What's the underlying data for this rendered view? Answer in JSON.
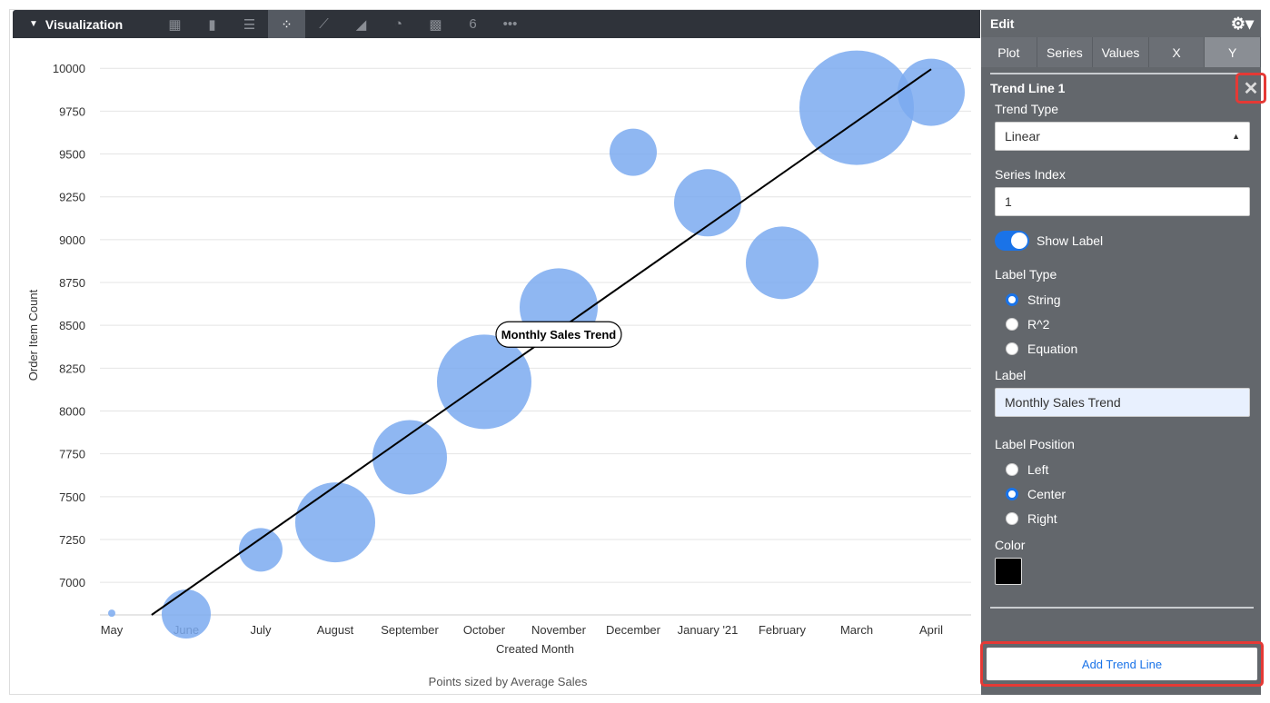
{
  "toolbar": {
    "title": "Visualization",
    "icons": [
      "table-icon",
      "column-chart-icon",
      "bar-chart-icon",
      "scatter-chart-icon",
      "line-chart-icon",
      "area-chart-icon",
      "pie-chart-icon",
      "map-icon",
      "single-value-icon",
      "more-icon"
    ],
    "single_value_glyph": "6",
    "more_glyph": "•••"
  },
  "panel": {
    "title": "Edit",
    "tabs": [
      "Plot",
      "Series",
      "Values",
      "X",
      "Y"
    ],
    "active_tab": "Y",
    "trend_title": "Trend Line 1",
    "trend_type_label": "Trend Type",
    "trend_type": "Linear",
    "series_index_label": "Series Index",
    "series_index": "1",
    "show_label": "Show Label",
    "show_label_on": true,
    "label_type_label": "Label Type",
    "label_types": [
      "String",
      "R^2",
      "Equation"
    ],
    "label_type_selected": "String",
    "label_label": "Label",
    "label_value": "Monthly Sales Trend",
    "label_position_label": "Label Position",
    "positions": [
      "Left",
      "Center",
      "Right"
    ],
    "position_selected": "Center",
    "color_label": "Color",
    "color": "#000000",
    "add_button": "Add Trend Line",
    "highlight_color": "#e53935"
  },
  "chart_data": {
    "type": "scatter",
    "xlabel": "Created Month",
    "ylabel": "Order Item Count",
    "footnote": "Points sized by Average Sales",
    "categories": [
      "May",
      "June",
      "July",
      "August",
      "September",
      "October",
      "November",
      "December",
      "January '21",
      "February",
      "March",
      "April"
    ],
    "values": [
      6820,
      6815,
      7190,
      7350,
      7730,
      8170,
      8605,
      9510,
      9215,
      8865,
      9770,
      9860
    ],
    "sizes": [
      4,
      27,
      24,
      44,
      41,
      52,
      43,
      26,
      37,
      40,
      63,
      37
    ],
    "yticks": [
      7000,
      7250,
      7500,
      7750,
      8000,
      8250,
      8500,
      8750,
      9000,
      9250,
      9500,
      9750,
      10000
    ],
    "ylim": [
      6810,
      10070
    ],
    "bubble_color": "#7baaf0",
    "grid": true,
    "trend_line": {
      "label": "Monthly Sales Trend",
      "y_at_first": 6647,
      "y_at_last": 9995,
      "color": "#000000"
    }
  }
}
